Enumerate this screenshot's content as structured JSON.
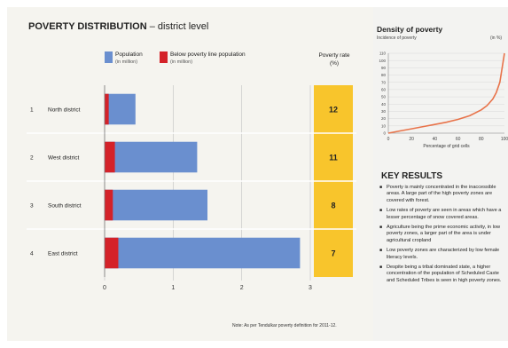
{
  "title": {
    "main": "POVERTY DISTRIBUTION",
    "sub": "– district level"
  },
  "legend": {
    "population": {
      "label": "Population",
      "units": "(in million)",
      "color": "#6a8fcf"
    },
    "bpl": {
      "label": "Below poverty line population",
      "units": "(in million)",
      "color": "#d42229"
    }
  },
  "rate_header": {
    "line1": "Poverty rate",
    "line2": "(%)"
  },
  "colors": {
    "rate_column": "#f8c52c",
    "panel_bg": "#f5f4ef",
    "grid": "#c8c8c8"
  },
  "chart_data": [
    {
      "type": "bar",
      "orientation": "horizontal",
      "stacked": "overlay",
      "title": "POVERTY DISTRIBUTION – district level",
      "categories": [
        "North district",
        "West district",
        "South district",
        "East district"
      ],
      "index": [
        "1",
        "2",
        "3",
        "4"
      ],
      "series": [
        {
          "name": "Population",
          "units": "in million",
          "values": [
            0.45,
            1.35,
            1.5,
            2.85
          ]
        },
        {
          "name": "Below poverty line population",
          "units": "in million",
          "values": [
            0.06,
            0.15,
            0.12,
            0.2
          ]
        }
      ],
      "poverty_rate": {
        "name": "Poverty rate",
        "units": "%",
        "values": [
          12,
          11,
          8,
          7
        ]
      },
      "xlim": [
        0,
        3
      ],
      "xticks": [
        "0",
        "1",
        "2",
        "3"
      ],
      "grid": true
    },
    {
      "type": "line",
      "title": "Density of poverty",
      "xlabel": "Percentage of grid cells",
      "ylabel": "Incidence of poverty",
      "yunit": "(in %)",
      "x": [
        0,
        10,
        20,
        30,
        40,
        50,
        60,
        70,
        80,
        85,
        90,
        93,
        96,
        98,
        100
      ],
      "y": [
        0,
        3,
        6,
        9,
        12,
        15,
        19,
        24,
        32,
        38,
        47,
        56,
        70,
        90,
        110
      ],
      "xlim": [
        0,
        100
      ],
      "ylim": [
        0,
        110
      ],
      "xticks": [
        "0",
        "20",
        "40",
        "60",
        "80",
        "100"
      ],
      "yticks": [
        "0",
        "10",
        "20",
        "30",
        "40",
        "50",
        "60",
        "70",
        "80",
        "90",
        "100",
        "110"
      ],
      "color": "#e8734a",
      "grid": true
    }
  ],
  "footnote": "Note: As per Tendulkar poverty definition for 2011-12.",
  "key_results": {
    "title": "KEY RESULTS",
    "items": [
      "Poverty is mainly concentrated in the inaccessible areas. A large part of the high poverty zones are covered with forest.",
      "Low rates of poverty are seen in areas which have a lesser percentage of snow covered areas.",
      "Agriculture being the prime economic activity, in low poverty zones, a larger part of the area is under agricultural cropland",
      "Low poverty zones are characterized by low female literacy levels.",
      "Despite being a tribal dominated state, a higher concentration of the population of Scheduled Caste and Scheduled Tribes is seen in high poverty zones."
    ]
  }
}
